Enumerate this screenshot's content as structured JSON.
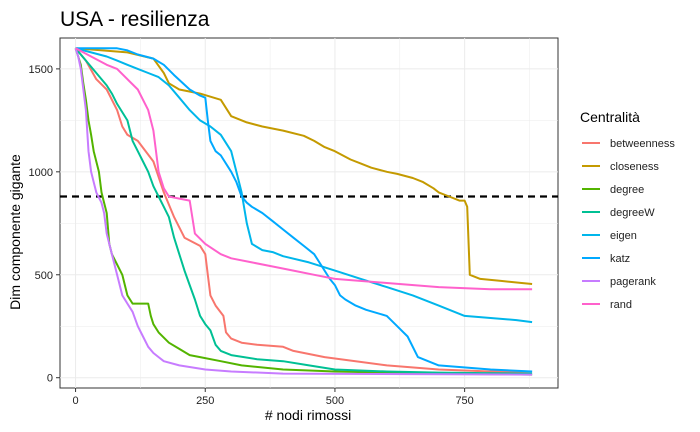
{
  "chart_data": {
    "type": "line",
    "title": "USA - resilienza",
    "xlabel": "# nodi rimossi",
    "ylabel": "Dim componente gigante",
    "xlim": [
      -30,
      930
    ],
    "ylim": [
      -50,
      1650
    ],
    "x_ticks": [
      0,
      250,
      500,
      750
    ],
    "y_ticks": [
      0,
      500,
      1000,
      1500
    ],
    "grid": true,
    "reference_line": {
      "y": 880,
      "style": "dashed",
      "color": "#000000"
    },
    "legend": {
      "title": "Centralità",
      "placement": "right"
    },
    "series": [
      {
        "name": "betweenness",
        "color": "#F8766D",
        "points": [
          [
            0,
            1600
          ],
          [
            10,
            1570
          ],
          [
            20,
            1540
          ],
          [
            40,
            1450
          ],
          [
            60,
            1400
          ],
          [
            80,
            1300
          ],
          [
            90,
            1220
          ],
          [
            100,
            1180
          ],
          [
            120,
            1150
          ],
          [
            150,
            1050
          ],
          [
            170,
            900
          ],
          [
            190,
            780
          ],
          [
            210,
            680
          ],
          [
            240,
            640
          ],
          [
            250,
            600
          ],
          [
            255,
            500
          ],
          [
            260,
            400
          ],
          [
            270,
            350
          ],
          [
            285,
            300
          ],
          [
            290,
            220
          ],
          [
            300,
            190
          ],
          [
            320,
            170
          ],
          [
            350,
            160
          ],
          [
            400,
            150
          ],
          [
            420,
            130
          ],
          [
            480,
            100
          ],
          [
            600,
            60
          ],
          [
            700,
            40
          ],
          [
            800,
            30
          ],
          [
            880,
            30
          ]
        ]
      },
      {
        "name": "closeness",
        "color": "#C49A00",
        "points": [
          [
            0,
            1600
          ],
          [
            100,
            1580
          ],
          [
            150,
            1550
          ],
          [
            170,
            1480
          ],
          [
            180,
            1430
          ],
          [
            200,
            1400
          ],
          [
            240,
            1380
          ],
          [
            280,
            1350
          ],
          [
            300,
            1270
          ],
          [
            330,
            1240
          ],
          [
            360,
            1220
          ],
          [
            400,
            1200
          ],
          [
            440,
            1175
          ],
          [
            460,
            1150
          ],
          [
            480,
            1120
          ],
          [
            500,
            1100
          ],
          [
            530,
            1060
          ],
          [
            550,
            1040
          ],
          [
            570,
            1020
          ],
          [
            600,
            1000
          ],
          [
            620,
            990
          ],
          [
            650,
            970
          ],
          [
            670,
            950
          ],
          [
            690,
            920
          ],
          [
            700,
            900
          ],
          [
            720,
            880
          ],
          [
            740,
            860
          ],
          [
            750,
            860
          ],
          [
            755,
            830
          ],
          [
            760,
            500
          ],
          [
            780,
            480
          ],
          [
            820,
            470
          ],
          [
            860,
            460
          ],
          [
            880,
            455
          ]
        ]
      },
      {
        "name": "degree",
        "color": "#53B400",
        "points": [
          [
            0,
            1600
          ],
          [
            5,
            1560
          ],
          [
            10,
            1520
          ],
          [
            15,
            1430
          ],
          [
            20,
            1350
          ],
          [
            25,
            1250
          ],
          [
            30,
            1180
          ],
          [
            35,
            1100
          ],
          [
            40,
            1050
          ],
          [
            45,
            1000
          ],
          [
            50,
            900
          ],
          [
            55,
            850
          ],
          [
            60,
            800
          ],
          [
            65,
            650
          ],
          [
            70,
            600
          ],
          [
            80,
            550
          ],
          [
            90,
            500
          ],
          [
            100,
            400
          ],
          [
            110,
            360
          ],
          [
            140,
            360
          ],
          [
            145,
            300
          ],
          [
            150,
            260
          ],
          [
            160,
            220
          ],
          [
            180,
            170
          ],
          [
            200,
            140
          ],
          [
            220,
            110
          ],
          [
            240,
            100
          ],
          [
            280,
            80
          ],
          [
            320,
            60
          ],
          [
            400,
            40
          ],
          [
            500,
            30
          ],
          [
            700,
            20
          ],
          [
            880,
            15
          ]
        ]
      },
      {
        "name": "degreeW",
        "color": "#00C094",
        "points": [
          [
            0,
            1600
          ],
          [
            20,
            1540
          ],
          [
            40,
            1480
          ],
          [
            60,
            1420
          ],
          [
            70,
            1380
          ],
          [
            80,
            1330
          ],
          [
            100,
            1250
          ],
          [
            110,
            1150
          ],
          [
            120,
            1100
          ],
          [
            130,
            1050
          ],
          [
            140,
            1000
          ],
          [
            150,
            930
          ],
          [
            160,
            880
          ],
          [
            170,
            830
          ],
          [
            180,
            780
          ],
          [
            190,
            680
          ],
          [
            200,
            600
          ],
          [
            210,
            520
          ],
          [
            220,
            450
          ],
          [
            230,
            380
          ],
          [
            240,
            300
          ],
          [
            250,
            260
          ],
          [
            260,
            230
          ],
          [
            270,
            160
          ],
          [
            280,
            130
          ],
          [
            300,
            110
          ],
          [
            350,
            90
          ],
          [
            400,
            80
          ],
          [
            450,
            60
          ],
          [
            500,
            40
          ],
          [
            600,
            30
          ],
          [
            700,
            25
          ],
          [
            880,
            20
          ]
        ]
      },
      {
        "name": "eigen",
        "color": "#00B6EB",
        "points": [
          [
            0,
            1600
          ],
          [
            30,
            1580
          ],
          [
            60,
            1560
          ],
          [
            80,
            1540
          ],
          [
            100,
            1520
          ],
          [
            120,
            1500
          ],
          [
            140,
            1480
          ],
          [
            160,
            1460
          ],
          [
            180,
            1420
          ],
          [
            200,
            1360
          ],
          [
            220,
            1300
          ],
          [
            240,
            1250
          ],
          [
            260,
            1220
          ],
          [
            280,
            1180
          ],
          [
            300,
            1100
          ],
          [
            310,
            1000
          ],
          [
            320,
            900
          ],
          [
            330,
            750
          ],
          [
            340,
            650
          ],
          [
            360,
            620
          ],
          [
            380,
            610
          ],
          [
            400,
            590
          ],
          [
            450,
            560
          ],
          [
            500,
            520
          ],
          [
            550,
            480
          ],
          [
            600,
            440
          ],
          [
            650,
            400
          ],
          [
            700,
            350
          ],
          [
            750,
            300
          ],
          [
            800,
            290
          ],
          [
            850,
            280
          ],
          [
            880,
            270
          ]
        ]
      },
      {
        "name": "katz",
        "color": "#00A9FF",
        "points": [
          [
            0,
            1600
          ],
          [
            80,
            1600
          ],
          [
            100,
            1590
          ],
          [
            120,
            1570
          ],
          [
            150,
            1550
          ],
          [
            170,
            1520
          ],
          [
            190,
            1470
          ],
          [
            220,
            1400
          ],
          [
            240,
            1370
          ],
          [
            250,
            1360
          ],
          [
            255,
            1250
          ],
          [
            260,
            1150
          ],
          [
            270,
            1100
          ],
          [
            280,
            1080
          ],
          [
            300,
            1000
          ],
          [
            310,
            950
          ],
          [
            320,
            880
          ],
          [
            330,
            850
          ],
          [
            340,
            830
          ],
          [
            360,
            800
          ],
          [
            380,
            760
          ],
          [
            400,
            720
          ],
          [
            420,
            680
          ],
          [
            440,
            640
          ],
          [
            460,
            600
          ],
          [
            470,
            560
          ],
          [
            480,
            520
          ],
          [
            490,
            480
          ],
          [
            500,
            450
          ],
          [
            510,
            400
          ],
          [
            520,
            380
          ],
          [
            540,
            350
          ],
          [
            560,
            330
          ],
          [
            600,
            300
          ],
          [
            620,
            250
          ],
          [
            640,
            200
          ],
          [
            660,
            100
          ],
          [
            700,
            60
          ],
          [
            800,
            40
          ],
          [
            880,
            30
          ]
        ]
      },
      {
        "name": "pagerank",
        "color": "#C77CFF",
        "points": [
          [
            0,
            1600
          ],
          [
            5,
            1560
          ],
          [
            10,
            1500
          ],
          [
            20,
            1300
          ],
          [
            25,
            1100
          ],
          [
            30,
            1000
          ],
          [
            35,
            950
          ],
          [
            40,
            900
          ],
          [
            50,
            850
          ],
          [
            55,
            800
          ],
          [
            60,
            700
          ],
          [
            70,
            600
          ],
          [
            80,
            500
          ],
          [
            90,
            400
          ],
          [
            100,
            360
          ],
          [
            110,
            320
          ],
          [
            120,
            250
          ],
          [
            130,
            200
          ],
          [
            140,
            150
          ],
          [
            150,
            120
          ],
          [
            160,
            100
          ],
          [
            170,
            80
          ],
          [
            200,
            60
          ],
          [
            250,
            40
          ],
          [
            300,
            30
          ],
          [
            400,
            20
          ],
          [
            880,
            15
          ]
        ]
      },
      {
        "name": "rand",
        "color": "#FF61CC",
        "points": [
          [
            0,
            1600
          ],
          [
            30,
            1560
          ],
          [
            60,
            1520
          ],
          [
            80,
            1500
          ],
          [
            100,
            1450
          ],
          [
            120,
            1400
          ],
          [
            140,
            1300
          ],
          [
            150,
            1200
          ],
          [
            160,
            1000
          ],
          [
            170,
            920
          ],
          [
            180,
            880
          ],
          [
            200,
            870
          ],
          [
            220,
            860
          ],
          [
            225,
            780
          ],
          [
            230,
            700
          ],
          [
            250,
            650
          ],
          [
            280,
            600
          ],
          [
            300,
            580
          ],
          [
            340,
            560
          ],
          [
            380,
            540
          ],
          [
            420,
            520
          ],
          [
            460,
            500
          ],
          [
            500,
            480
          ],
          [
            600,
            460
          ],
          [
            700,
            440
          ],
          [
            800,
            430
          ],
          [
            880,
            430
          ]
        ]
      }
    ]
  }
}
